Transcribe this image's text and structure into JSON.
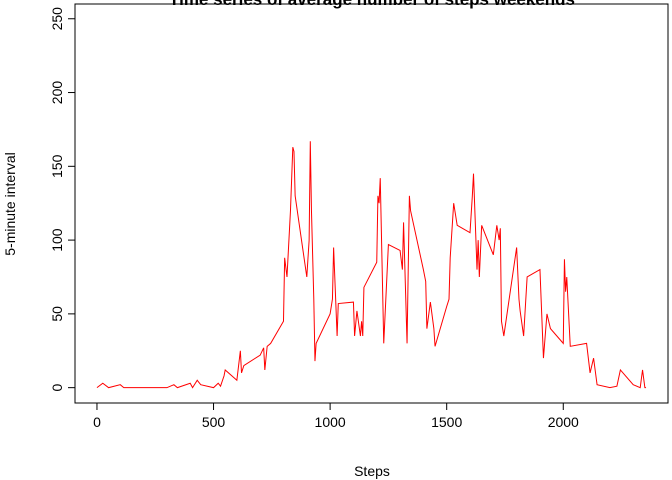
{
  "chart_data": {
    "type": "line",
    "title": "Time series of average number of steps weekends",
    "x_label": "Steps",
    "y_label": "5-minute interval",
    "xlim": [
      -94.2,
      2449.2
    ],
    "ylim": [
      -10.4,
      260
    ],
    "xticks": [
      0,
      500,
      1000,
      1500,
      2000
    ],
    "yticks": [
      0,
      50,
      100,
      150,
      200,
      250
    ],
    "series": [
      {
        "name": "weekend",
        "color": "#ff0000",
        "x": [
          0,
          25,
          50,
          100,
          115,
          200,
          300,
          330,
          345,
          400,
          410,
          430,
          445,
          500,
          520,
          530,
          545,
          550,
          600,
          615,
          620,
          630,
          700,
          715,
          720,
          730,
          745,
          800,
          805,
          815,
          830,
          840,
          845,
          850,
          900,
          910,
          915,
          920,
          930,
          935,
          940,
          1000,
          1010,
          1015,
          1030,
          1035,
          1100,
          1105,
          1115,
          1130,
          1135,
          1140,
          1145,
          1200,
          1205,
          1210,
          1215,
          1230,
          1250,
          1300,
          1310,
          1315,
          1330,
          1340,
          1345,
          1400,
          1410,
          1415,
          1430,
          1445,
          1450,
          1500,
          1510,
          1515,
          1530,
          1545,
          1600,
          1610,
          1615,
          1630,
          1635,
          1640,
          1650,
          1700,
          1715,
          1725,
          1730,
          1735,
          1745,
          1800,
          1810,
          1815,
          1830,
          1845,
          1900,
          1915,
          1930,
          1945,
          2000,
          2005,
          2010,
          2015,
          2030,
          2100,
          2115,
          2130,
          2145,
          2200,
          2230,
          2245,
          2300,
          2330,
          2340,
          2350,
          2355
        ],
        "values": [
          0,
          3,
          0,
          2,
          0,
          0,
          0,
          2,
          0,
          3,
          0,
          5,
          2,
          0,
          3,
          1,
          8,
          12,
          5,
          25,
          10,
          15,
          22,
          27,
          12,
          28,
          30,
          45,
          88,
          75,
          120,
          163,
          160,
          130,
          75,
          100,
          167,
          120,
          60,
          18,
          30,
          50,
          60,
          95,
          35,
          57,
          58,
          35,
          52,
          35,
          45,
          35,
          68,
          85,
          130,
          125,
          142,
          30,
          97,
          93,
          80,
          112,
          30,
          130,
          120,
          80,
          72,
          40,
          58,
          40,
          28,
          55,
          60,
          88,
          125,
          110,
          105,
          130,
          145,
          80,
          100,
          75,
          110,
          90,
          110,
          100,
          108,
          45,
          35,
          95,
          60,
          52,
          35,
          75,
          80,
          20,
          50,
          40,
          30,
          87,
          65,
          75,
          28,
          30,
          10,
          20,
          2,
          0,
          1,
          12,
          2,
          0,
          12,
          0,
          0
        ]
      }
    ]
  }
}
